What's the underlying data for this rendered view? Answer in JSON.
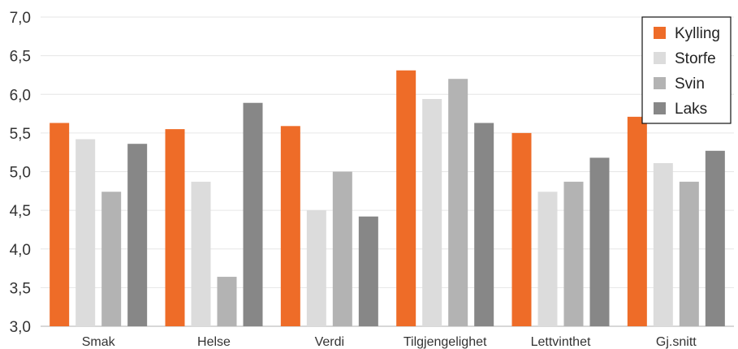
{
  "chart_data": {
    "type": "bar",
    "categories": [
      "Smak",
      "Helse",
      "Verdi",
      "Tilgjengelighet",
      "Lettvinthet",
      "Gj.snitt"
    ],
    "series": [
      {
        "name": "Kylling",
        "color": "#ee6c28",
        "values": [
          5.63,
          5.55,
          5.59,
          6.31,
          5.5,
          5.71
        ]
      },
      {
        "name": "Storfe",
        "color": "#dcdcdc",
        "values": [
          5.42,
          4.87,
          4.5,
          5.94,
          4.74,
          5.11
        ]
      },
      {
        "name": "Svin",
        "color": "#b3b3b3",
        "values": [
          4.74,
          3.64,
          5.0,
          6.2,
          4.87,
          4.87
        ]
      },
      {
        "name": "Laks",
        "color": "#878787",
        "values": [
          5.36,
          5.89,
          4.42,
          5.63,
          5.18,
          5.27
        ]
      }
    ],
    "ylim": [
      3.0,
      7.0
    ],
    "yticks": [
      "3,0",
      "3,5",
      "4,0",
      "4,5",
      "5,0",
      "5,5",
      "6,0",
      "6,5",
      "7,0"
    ],
    "grid": true,
    "legend_position": "top-right"
  }
}
